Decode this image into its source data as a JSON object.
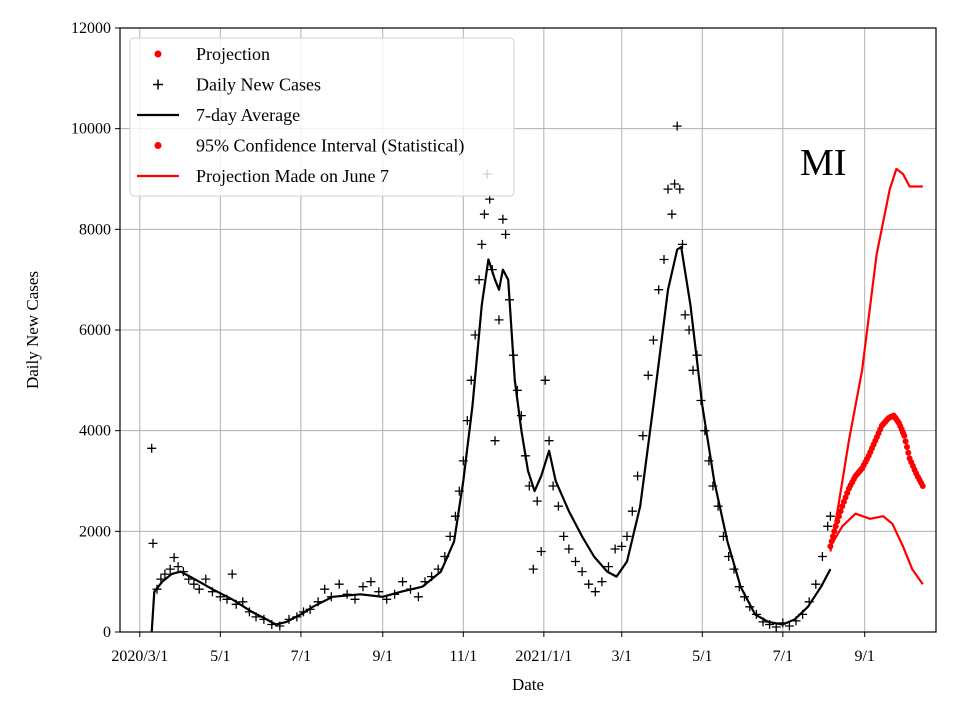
{
  "chart_data": {
    "type": "line",
    "title": "",
    "xlabel": "Date",
    "ylabel": "Daily New Cases",
    "annotation": "MI",
    "ylim": [
      0,
      12000
    ],
    "xlim": [
      "2020-02-15",
      "2021-10-25"
    ],
    "grid": true,
    "legend_position": "top-left",
    "yticks": [
      0,
      2000,
      4000,
      6000,
      8000,
      10000,
      12000
    ],
    "xticks": [
      {
        "date": "2020-03-01",
        "label": "2020/3/1"
      },
      {
        "date": "2020-05-01",
        "label": "5/1"
      },
      {
        "date": "2020-07-01",
        "label": "7/1"
      },
      {
        "date": "2020-09-01",
        "label": "9/1"
      },
      {
        "date": "2020-11-01",
        "label": "11/1"
      },
      {
        "date": "2021-01-01",
        "label": "2021/1/1"
      },
      {
        "date": "2021-03-01",
        "label": "3/1"
      },
      {
        "date": "2021-05-01",
        "label": "5/1"
      },
      {
        "date": "2021-07-01",
        "label": "7/1"
      },
      {
        "date": "2021-09-01",
        "label": "9/1"
      }
    ],
    "legend": [
      {
        "label": "Projection",
        "marker": "dot",
        "color": "#ff0000"
      },
      {
        "label": "Daily New Cases",
        "marker": "plus",
        "color": "#000000"
      },
      {
        "label": "7-day Average",
        "marker": "line",
        "color": "#000000"
      },
      {
        "label": "95% Confidence Interval (Statistical)",
        "marker": "dot",
        "color": "#ff0000"
      },
      {
        "label": "Projection Made on June 7",
        "marker": "line",
        "color": "#ff0000"
      }
    ],
    "series": [
      {
        "name": "7-day Average",
        "style": "line",
        "color": "#000000",
        "points": [
          [
            "2020-03-10",
            0
          ],
          [
            "2020-03-12",
            800
          ],
          [
            "2020-03-18",
            1000
          ],
          [
            "2020-03-25",
            1150
          ],
          [
            "2020-04-01",
            1200
          ],
          [
            "2020-04-08",
            1100
          ],
          [
            "2020-04-15",
            1000
          ],
          [
            "2020-04-25",
            850
          ],
          [
            "2020-05-10",
            650
          ],
          [
            "2020-05-25",
            400
          ],
          [
            "2020-06-05",
            250
          ],
          [
            "2020-06-12",
            150
          ],
          [
            "2020-06-20",
            200
          ],
          [
            "2020-07-01",
            350
          ],
          [
            "2020-07-10",
            500
          ],
          [
            "2020-07-25",
            700
          ],
          [
            "2020-08-15",
            750
          ],
          [
            "2020-09-01",
            700
          ],
          [
            "2020-09-15",
            800
          ],
          [
            "2020-10-01",
            900
          ],
          [
            "2020-10-15",
            1200
          ],
          [
            "2020-10-25",
            1800
          ],
          [
            "2020-11-01",
            3000
          ],
          [
            "2020-11-08",
            4500
          ],
          [
            "2020-11-15",
            6500
          ],
          [
            "2020-11-20",
            7400
          ],
          [
            "2020-11-25",
            7000
          ],
          [
            "2020-11-28",
            6800
          ],
          [
            "2020-12-01",
            7200
          ],
          [
            "2020-12-05",
            7000
          ],
          [
            "2020-12-10",
            5000
          ],
          [
            "2020-12-15",
            4000
          ],
          [
            "2020-12-20",
            3200
          ],
          [
            "2020-12-25",
            2800
          ],
          [
            "2020-12-30",
            3100
          ],
          [
            "2021-01-05",
            3600
          ],
          [
            "2021-01-10",
            3000
          ],
          [
            "2021-01-20",
            2400
          ],
          [
            "2021-01-30",
            1900
          ],
          [
            "2021-02-08",
            1500
          ],
          [
            "2021-02-18",
            1200
          ],
          [
            "2021-02-25",
            1100
          ],
          [
            "2021-03-05",
            1400
          ],
          [
            "2021-03-15",
            2500
          ],
          [
            "2021-03-25",
            4500
          ],
          [
            "2021-04-05",
            6800
          ],
          [
            "2021-04-12",
            7600
          ],
          [
            "2021-04-15",
            7650
          ],
          [
            "2021-04-22",
            6500
          ],
          [
            "2021-05-01",
            4500
          ],
          [
            "2021-05-10",
            3000
          ],
          [
            "2021-05-20",
            1800
          ],
          [
            "2021-05-30",
            900
          ],
          [
            "2021-06-10",
            350
          ],
          [
            "2021-06-20",
            200
          ],
          [
            "2021-07-01",
            150
          ],
          [
            "2021-07-10",
            250
          ],
          [
            "2021-07-20",
            500
          ],
          [
            "2021-07-30",
            900
          ],
          [
            "2021-08-06",
            1250
          ]
        ]
      },
      {
        "name": "Projection Made on June 7",
        "style": "line",
        "color": "#ff0000",
        "points": [
          [
            "2021-08-06",
            1600
          ],
          [
            "2021-08-12",
            2500
          ],
          [
            "2021-08-20",
            3800
          ],
          [
            "2021-08-30",
            5200
          ],
          [
            "2021-09-10",
            7500
          ],
          [
            "2021-09-20",
            8800
          ],
          [
            "2021-09-25",
            9200
          ],
          [
            "2021-09-30",
            9100
          ],
          [
            "2021-10-05",
            8850
          ],
          [
            "2021-10-15",
            8850
          ]
        ]
      },
      {
        "name": "Projection Made on June 7",
        "style": "line",
        "color": "#ff0000",
        "points": [
          [
            "2021-08-06",
            1700
          ],
          [
            "2021-08-15",
            2100
          ],
          [
            "2021-08-25",
            2350
          ],
          [
            "2021-09-05",
            2250
          ],
          [
            "2021-09-15",
            2300
          ],
          [
            "2021-09-22",
            2150
          ],
          [
            "2021-09-30",
            1700
          ],
          [
            "2021-10-07",
            1250
          ],
          [
            "2021-10-15",
            950
          ]
        ]
      },
      {
        "name": "Projection",
        "style": "dots",
        "color": "#ff0000",
        "points": [
          [
            "2021-08-06",
            1700
          ],
          [
            "2021-08-10",
            2100
          ],
          [
            "2021-08-15",
            2500
          ],
          [
            "2021-08-20",
            2850
          ],
          [
            "2021-08-25",
            3100
          ],
          [
            "2021-08-30",
            3250
          ],
          [
            "2021-09-04",
            3500
          ],
          [
            "2021-09-09",
            3800
          ],
          [
            "2021-09-14",
            4100
          ],
          [
            "2021-09-19",
            4250
          ],
          [
            "2021-09-23",
            4300
          ],
          [
            "2021-09-27",
            4150
          ],
          [
            "2021-10-01",
            3900
          ],
          [
            "2021-10-05",
            3450
          ],
          [
            "2021-10-10",
            3150
          ],
          [
            "2021-10-15",
            2900
          ]
        ]
      },
      {
        "name": "Daily New Cases",
        "style": "plus",
        "color": "#000000",
        "points": [
          [
            "2020-03-10",
            3650
          ],
          [
            "2020-03-11",
            1760
          ],
          [
            "2020-03-14",
            850
          ],
          [
            "2020-03-17",
            1050
          ],
          [
            "2020-03-20",
            1150
          ],
          [
            "2020-03-24",
            1250
          ],
          [
            "2020-03-27",
            1480
          ],
          [
            "2020-03-30",
            1300
          ],
          [
            "2020-04-03",
            1200
          ],
          [
            "2020-04-07",
            1050
          ],
          [
            "2020-04-11",
            950
          ],
          [
            "2020-04-15",
            850
          ],
          [
            "2020-04-20",
            1050
          ],
          [
            "2020-04-25",
            800
          ],
          [
            "2020-05-01",
            700
          ],
          [
            "2020-05-06",
            650
          ],
          [
            "2020-05-10",
            1150
          ],
          [
            "2020-05-13",
            550
          ],
          [
            "2020-05-18",
            600
          ],
          [
            "2020-05-23",
            400
          ],
          [
            "2020-05-28",
            300
          ],
          [
            "2020-06-03",
            250
          ],
          [
            "2020-06-09",
            150
          ],
          [
            "2020-06-15",
            120
          ],
          [
            "2020-06-22",
            250
          ],
          [
            "2020-06-28",
            300
          ],
          [
            "2020-07-03",
            400
          ],
          [
            "2020-07-08",
            450
          ],
          [
            "2020-07-14",
            600
          ],
          [
            "2020-07-19",
            850
          ],
          [
            "2020-07-24",
            700
          ],
          [
            "2020-07-30",
            950
          ],
          [
            "2020-08-05",
            750
          ],
          [
            "2020-08-11",
            650
          ],
          [
            "2020-08-17",
            900
          ],
          [
            "2020-08-23",
            1000
          ],
          [
            "2020-08-29",
            800
          ],
          [
            "2020-09-04",
            650
          ],
          [
            "2020-09-10",
            750
          ],
          [
            "2020-09-16",
            1000
          ],
          [
            "2020-09-22",
            850
          ],
          [
            "2020-09-28",
            700
          ],
          [
            "2020-10-03",
            1000
          ],
          [
            "2020-10-08",
            1100
          ],
          [
            "2020-10-13",
            1250
          ],
          [
            "2020-10-18",
            1500
          ],
          [
            "2020-10-22",
            1900
          ],
          [
            "2020-10-26",
            2300
          ],
          [
            "2020-10-29",
            2800
          ],
          [
            "2020-11-01",
            3400
          ],
          [
            "2020-11-04",
            4200
          ],
          [
            "2020-11-07",
            5000
          ],
          [
            "2020-11-10",
            5900
          ],
          [
            "2020-11-13",
            7000
          ],
          [
            "2020-11-15",
            7700
          ],
          [
            "2020-11-17",
            8300
          ],
          [
            "2020-11-19",
            9100
          ],
          [
            "2020-11-21",
            8600
          ],
          [
            "2020-11-23",
            7200
          ],
          [
            "2020-11-25",
            3800
          ],
          [
            "2020-11-28",
            6200
          ],
          [
            "2020-12-01",
            8200
          ],
          [
            "2020-12-03",
            7900
          ],
          [
            "2020-12-06",
            6600
          ],
          [
            "2020-12-09",
            5500
          ],
          [
            "2020-12-12",
            4800
          ],
          [
            "2020-12-15",
            4300
          ],
          [
            "2020-12-18",
            3500
          ],
          [
            "2020-12-21",
            2900
          ],
          [
            "2020-12-24",
            1250
          ],
          [
            "2020-12-27",
            2600
          ],
          [
            "2020-12-30",
            1600
          ],
          [
            "2021-01-02",
            5000
          ],
          [
            "2021-01-05",
            3800
          ],
          [
            "2021-01-08",
            2900
          ],
          [
            "2021-01-12",
            2500
          ],
          [
            "2021-01-16",
            1900
          ],
          [
            "2021-01-20",
            1650
          ],
          [
            "2021-01-25",
            1400
          ],
          [
            "2021-01-30",
            1200
          ],
          [
            "2021-02-04",
            950
          ],
          [
            "2021-02-09",
            800
          ],
          [
            "2021-02-14",
            1000
          ],
          [
            "2021-02-19",
            1300
          ],
          [
            "2021-02-24",
            1650
          ],
          [
            "2021-03-01",
            1700
          ],
          [
            "2021-03-05",
            1900
          ],
          [
            "2021-03-09",
            2400
          ],
          [
            "2021-03-13",
            3100
          ],
          [
            "2021-03-17",
            3900
          ],
          [
            "2021-03-21",
            5100
          ],
          [
            "2021-03-25",
            5800
          ],
          [
            "2021-03-29",
            6800
          ],
          [
            "2021-04-02",
            7400
          ],
          [
            "2021-04-05",
            8800
          ],
          [
            "2021-04-08",
            8300
          ],
          [
            "2021-04-10",
            8900
          ],
          [
            "2021-04-12",
            10050
          ],
          [
            "2021-04-14",
            8800
          ],
          [
            "2021-04-16",
            7700
          ],
          [
            "2021-04-18",
            6300
          ],
          [
            "2021-04-21",
            6000
          ],
          [
            "2021-04-24",
            5200
          ],
          [
            "2021-04-27",
            5500
          ],
          [
            "2021-04-30",
            4600
          ],
          [
            "2021-05-03",
            4000
          ],
          [
            "2021-05-06",
            3400
          ],
          [
            "2021-05-09",
            2900
          ],
          [
            "2021-05-13",
            2500
          ],
          [
            "2021-05-17",
            1900
          ],
          [
            "2021-05-21",
            1500
          ],
          [
            "2021-05-25",
            1250
          ],
          [
            "2021-05-29",
            900
          ],
          [
            "2021-06-02",
            700
          ],
          [
            "2021-06-06",
            500
          ],
          [
            "2021-06-11",
            350
          ],
          [
            "2021-06-16",
            200
          ],
          [
            "2021-06-21",
            150
          ],
          [
            "2021-06-26",
            100
          ],
          [
            "2021-07-01",
            180
          ],
          [
            "2021-07-06",
            120
          ],
          [
            "2021-07-11",
            220
          ],
          [
            "2021-07-16",
            350
          ],
          [
            "2021-07-21",
            600
          ],
          [
            "2021-07-26",
            950
          ],
          [
            "2021-07-31",
            1500
          ],
          [
            "2021-08-04",
            2100
          ],
          [
            "2021-08-06",
            2300
          ]
        ]
      }
    ]
  }
}
